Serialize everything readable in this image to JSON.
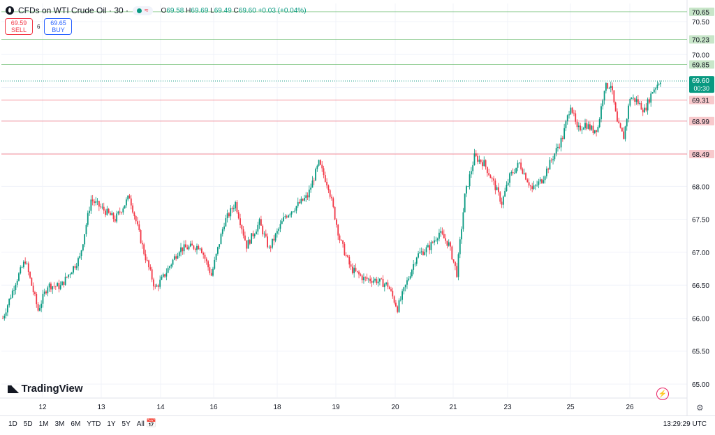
{
  "header": {
    "title": "CFDs on WTI Crude Oil · 30 ·",
    "ohlc": {
      "o_label": "O",
      "o": "69.58",
      "h_label": "H",
      "h": "69.69",
      "l_label": "L",
      "l": "69.49",
      "c_label": "C",
      "c": "69.60",
      "change": "+0.03 (+0.04%)"
    },
    "colors": {
      "up": "#089981",
      "down": "#f23645"
    }
  },
  "trade": {
    "sell_price": "69.59",
    "sell_label": "SELL",
    "spread": "6",
    "buy_price": "69.65",
    "buy_label": "BUY"
  },
  "brand": {
    "name": "TradingView"
  },
  "bottom": {
    "ranges": [
      "1D",
      "5D",
      "1M",
      "3M",
      "6M",
      "YTD",
      "1Y",
      "5Y",
      "All"
    ],
    "clock": "13:29:29 UTC"
  },
  "chart_data": {
    "type": "candlestick",
    "title": "CFDs on WTI Crude Oil · 30",
    "y_ticks": [
      65.0,
      65.5,
      66.0,
      66.5,
      67.0,
      67.5,
      68.0,
      68.5,
      69.0,
      69.5,
      70.0,
      70.5
    ],
    "y_range": [
      64.95,
      70.75
    ],
    "x_ticks": [
      "12",
      "13",
      "14",
      "16",
      "18",
      "19",
      "20",
      "21",
      "23",
      "25",
      "26"
    ],
    "anchors": [
      [
        0,
        66.0
      ],
      [
        8,
        66.55
      ],
      [
        14,
        66.88
      ],
      [
        22,
        66.12
      ],
      [
        28,
        66.5
      ],
      [
        36,
        66.48
      ],
      [
        48,
        66.92
      ],
      [
        55,
        67.8
      ],
      [
        70,
        67.5
      ],
      [
        79,
        67.85
      ],
      [
        88,
        67.0
      ],
      [
        95,
        66.45
      ],
      [
        100,
        66.62
      ],
      [
        110,
        67.05
      ],
      [
        123,
        67.1
      ],
      [
        130,
        66.65
      ],
      [
        138,
        67.45
      ],
      [
        145,
        67.75
      ],
      [
        152,
        67.1
      ],
      [
        160,
        67.45
      ],
      [
        166,
        67.05
      ],
      [
        176,
        67.55
      ],
      [
        190,
        67.85
      ],
      [
        197,
        68.35
      ],
      [
        203,
        68.0
      ],
      [
        210,
        67.2
      ],
      [
        217,
        66.75
      ],
      [
        225,
        66.6
      ],
      [
        232,
        66.58
      ],
      [
        240,
        66.5
      ],
      [
        246,
        66.15
      ],
      [
        253,
        66.62
      ],
      [
        258,
        66.95
      ],
      [
        266,
        67.08
      ],
      [
        272,
        67.3
      ],
      [
        278,
        67.12
      ],
      [
        283,
        66.68
      ],
      [
        288,
        67.85
      ],
      [
        294,
        68.45
      ],
      [
        300,
        68.35
      ],
      [
        306,
        68.05
      ],
      [
        311,
        67.75
      ],
      [
        316,
        68.15
      ],
      [
        322,
        68.35
      ],
      [
        330,
        67.95
      ],
      [
        336,
        68.1
      ],
      [
        343,
        68.45
      ],
      [
        349,
        68.75
      ],
      [
        354,
        69.25
      ],
      [
        358,
        68.85
      ],
      [
        363,
        68.95
      ],
      [
        368,
        68.85
      ],
      [
        371,
        68.9
      ],
      [
        375,
        69.5
      ],
      [
        379,
        69.55
      ],
      [
        383,
        68.95
      ],
      [
        387,
        68.75
      ],
      [
        391,
        69.35
      ],
      [
        395,
        69.3
      ],
      [
        400,
        69.15
      ],
      [
        405,
        69.45
      ],
      [
        410,
        69.62
      ]
    ],
    "candle_count": 411,
    "levels": [
      {
        "value": 70.65,
        "label": "70.65",
        "color": "#4caf50"
      },
      {
        "value": 70.23,
        "label": "70.23",
        "color": "#4caf50"
      },
      {
        "value": 69.85,
        "label": "69.85",
        "color": "#4caf50"
      },
      {
        "value": 69.31,
        "label": "69.31",
        "color": "#f23645"
      },
      {
        "value": 68.99,
        "label": "68.99",
        "color": "#f23645"
      },
      {
        "value": 68.49,
        "label": "68.49",
        "color": "#f23645"
      }
    ],
    "last_price": {
      "value": 69.6,
      "label": "69.60",
      "countdown": "00:30",
      "color": "#089981"
    }
  }
}
